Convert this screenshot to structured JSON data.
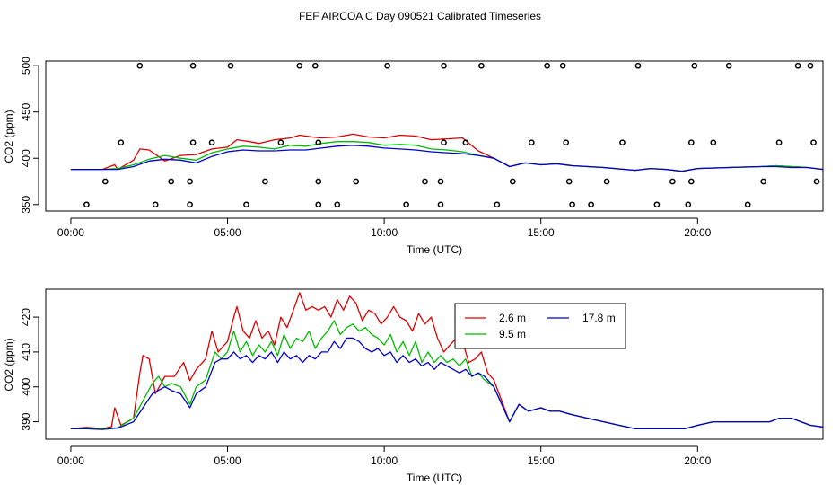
{
  "title": "FEF AIRCOA C  Day 090521  Calibrated Timeseries",
  "colors": {
    "s26": "#dd0000",
    "s95": "#00bb00",
    "s178": "#0000cc",
    "axis": "#000000"
  },
  "chart_data": [
    {
      "type": "line",
      "panel": "top",
      "xlabel": "Time (UTC)",
      "ylabel": "CO2 (ppm)",
      "xlim": [
        -0.8,
        24.0
      ],
      "ylim": [
        343,
        505
      ],
      "x_ticks": [
        0,
        5,
        10,
        15,
        20
      ],
      "x_tick_labels": [
        "00:00",
        "05:00",
        "10:00",
        "15:00",
        "20:00"
      ],
      "y_ticks": [
        350,
        400,
        450,
        500
      ],
      "y_tick_labels": [
        "350",
        "400",
        "450",
        "500"
      ],
      "series": [
        {
          "name": "2.6 m",
          "color_key": "s26",
          "x": [
            0,
            0.5,
            1,
            1.4,
            1.5,
            2,
            2.2,
            2.5,
            3,
            3.5,
            4,
            4.5,
            5,
            5.3,
            5.7,
            6,
            6.5,
            7,
            7.3,
            7.7,
            8,
            8.5,
            9,
            9.5,
            10,
            10.5,
            11,
            11.5,
            12,
            12.5,
            13,
            13.5,
            14,
            14.5,
            15,
            15.5,
            16,
            17,
            18,
            18.5,
            19,
            19.5,
            20,
            21,
            22,
            22.5,
            23,
            23.5,
            24
          ],
          "values": [
            388,
            388,
            388,
            393,
            388,
            398,
            410,
            409,
            397,
            403,
            404,
            410,
            412,
            420,
            418,
            416,
            420,
            422,
            425,
            423,
            422,
            423,
            426,
            423,
            422,
            425,
            424,
            420,
            421,
            422,
            408,
            400,
            391,
            395,
            393,
            394,
            392,
            390,
            387,
            389,
            388,
            386,
            389,
            390,
            391,
            392,
            391,
            390,
            388
          ]
        },
        {
          "name": "9.5 m",
          "color_key": "s95",
          "x": [
            0,
            0.5,
            1,
            1.5,
            2,
            2.5,
            3,
            3.5,
            4,
            4.5,
            5,
            5.5,
            6,
            6.5,
            7,
            7.5,
            8,
            8.5,
            9,
            9.5,
            10,
            10.5,
            11,
            11.5,
            12,
            12.5,
            13,
            13.5,
            14,
            14.5,
            15,
            15.5,
            16,
            17,
            18,
            18.5,
            19,
            19.5,
            20,
            21,
            22,
            22.5,
            23,
            23.5,
            24
          ],
          "values": [
            388,
            388,
            388,
            389,
            393,
            399,
            403,
            400,
            398,
            406,
            410,
            413,
            412,
            410,
            414,
            413,
            416,
            418,
            418,
            417,
            414,
            415,
            414,
            410,
            409,
            407,
            403,
            400,
            391,
            395,
            393,
            394,
            392,
            390,
            387,
            389,
            388,
            386,
            389,
            390,
            391,
            392,
            391,
            390,
            388
          ]
        },
        {
          "name": "17.8 m",
          "color_key": "s178",
          "x": [
            0,
            0.5,
            1,
            1.5,
            2,
            2.5,
            3,
            3.5,
            4,
            4.5,
            5,
            5.5,
            6,
            6.5,
            7,
            7.5,
            8,
            8.5,
            9,
            9.5,
            10,
            10.5,
            11,
            11.5,
            12,
            12.5,
            13,
            13.5,
            14,
            14.5,
            15,
            15.5,
            16,
            17,
            18,
            18.5,
            19,
            19.5,
            20,
            21,
            22,
            22.5,
            23,
            23.5,
            24
          ],
          "values": [
            388,
            388,
            388,
            388,
            391,
            397,
            399,
            398,
            395,
            402,
            407,
            409,
            408,
            408,
            409,
            409,
            411,
            413,
            414,
            413,
            411,
            410,
            409,
            407,
            406,
            405,
            403,
            400,
            391,
            395,
            393,
            394,
            392,
            390,
            387,
            389,
            388,
            386,
            389,
            390,
            391,
            391,
            390,
            390,
            388
          ]
        }
      ],
      "points": {
        "x": [
          0.5,
          1.1,
          1.6,
          2.2,
          2.7,
          3.2,
          3.8,
          3.8,
          3.9,
          3.9,
          4.5,
          5.1,
          5.6,
          6.2,
          6.7,
          7.3,
          7.8,
          7.9,
          7.9,
          7.9,
          8.5,
          9.1,
          10.1,
          10.7,
          11.3,
          11.8,
          11.8,
          11.9,
          11.9,
          12.6,
          13.1,
          13.6,
          14.1,
          14.7,
          15.2,
          15.7,
          15.8,
          15.9,
          16.0,
          16.6,
          17.1,
          17.6,
          18.1,
          18.7,
          19.2,
          19.7,
          19.8,
          19.8,
          19.9,
          20.5,
          21.0,
          21.6,
          22.1,
          22.6,
          23.2,
          23.6,
          23.7,
          23.8
        ],
        "values": [
          350,
          375,
          417,
          500,
          350,
          375,
          350,
          375,
          417,
          500,
          417,
          500,
          350,
          375,
          417,
          500,
          500,
          417,
          375,
          350,
          350,
          375,
          500,
          350,
          375,
          350,
          375,
          417,
          500,
          417,
          500,
          350,
          375,
          417,
          500,
          500,
          417,
          375,
          350,
          350,
          375,
          417,
          500,
          350,
          375,
          350,
          375,
          417,
          500,
          417,
          500,
          350,
          375,
          417,
          500,
          500,
          417,
          375
        ]
      }
    },
    {
      "type": "line",
      "panel": "bottom",
      "xlabel": "Time (UTC)",
      "ylabel": "CO2 (ppm)",
      "xlim": [
        -0.8,
        24.0
      ],
      "ylim": [
        385,
        428
      ],
      "x_ticks": [
        0,
        5,
        10,
        15,
        20
      ],
      "x_tick_labels": [
        "00:00",
        "05:00",
        "10:00",
        "15:00",
        "20:00"
      ],
      "y_ticks": [
        390,
        400,
        410,
        420
      ],
      "y_tick_labels": [
        "390",
        "400",
        "410",
        "420"
      ],
      "legend": {
        "position": "top-right",
        "entries": [
          "2.6 m",
          "9.5 m",
          "17.8 m"
        ]
      },
      "series": [
        {
          "name": "2.6 m",
          "color_key": "s26",
          "x": [
            0,
            0.5,
            1,
            1.3,
            1.4,
            1.6,
            2,
            2.2,
            2.3,
            2.5,
            2.7,
            3,
            3.3,
            3.6,
            3.8,
            4,
            4.3,
            4.5,
            4.7,
            4.9,
            5,
            5.2,
            5.3,
            5.5,
            5.7,
            5.9,
            6.1,
            6.3,
            6.5,
            6.7,
            6.9,
            7.1,
            7.3,
            7.5,
            7.7,
            7.9,
            8.1,
            8.3,
            8.5,
            8.7,
            8.9,
            9.1,
            9.3,
            9.5,
            9.7,
            9.9,
            10.1,
            10.3,
            10.5,
            10.7,
            10.9,
            11.1,
            11.3,
            11.5,
            11.7,
            11.9,
            12.1,
            12.3,
            12.5,
            12.7,
            12.9,
            13.1,
            13.3,
            13.5,
            14,
            14.3,
            14.6,
            15,
            15.3,
            15.6,
            16,
            16.5,
            17,
            17.5,
            18,
            18.3,
            18.6,
            19,
            19.3,
            19.6,
            20,
            20.5,
            21,
            21.5,
            22,
            22.3,
            22.6,
            23,
            23.3,
            23.6,
            24
          ],
          "values": [
            388,
            388.4,
            388,
            388.6,
            394,
            389,
            391,
            404,
            409,
            408,
            398,
            403,
            403,
            407,
            401.8,
            405,
            408,
            416,
            410,
            412,
            413,
            420,
            423,
            416,
            414,
            419,
            414,
            416,
            412,
            420,
            417,
            422,
            427,
            422,
            423,
            422,
            423,
            420,
            425,
            422,
            426,
            424,
            419,
            422,
            421,
            418,
            420,
            423,
            420,
            419,
            416,
            421,
            418,
            420,
            414,
            410,
            412,
            414,
            413,
            407,
            408,
            410,
            404,
            402,
            390,
            395,
            393,
            394,
            393,
            393,
            392,
            391,
            390,
            389,
            388,
            388,
            388,
            388,
            388,
            388,
            389,
            390,
            390,
            390,
            390,
            390,
            391,
            391,
            390,
            389,
            388.5
          ]
        },
        {
          "name": "9.5 m",
          "color_key": "s95",
          "x": [
            0,
            0.5,
            1,
            1.5,
            2,
            2.3,
            2.6,
            2.8,
            3,
            3.2,
            3.5,
            3.8,
            4,
            4.3,
            4.6,
            4.8,
            5,
            5.2,
            5.4,
            5.6,
            5.8,
            6,
            6.2,
            6.4,
            6.6,
            6.8,
            7,
            7.2,
            7.4,
            7.6,
            7.8,
            8,
            8.2,
            8.4,
            8.6,
            8.8,
            9,
            9.2,
            9.4,
            9.6,
            9.8,
            10,
            10.2,
            10.4,
            10.6,
            10.8,
            11,
            11.2,
            11.4,
            11.6,
            11.8,
            12,
            12.2,
            12.4,
            12.6,
            12.8,
            13,
            13.2,
            13.5,
            14,
            14.3,
            14.6,
            15,
            15.3,
            15.6,
            16,
            16.5,
            17,
            17.5,
            18,
            18.3,
            18.6,
            19,
            19.3,
            19.6,
            20,
            20.5,
            21,
            21.5,
            22,
            22.3,
            22.6,
            23,
            23.3,
            23.6,
            24
          ],
          "values": [
            388,
            388.2,
            388,
            388.3,
            391,
            396,
            401,
            403,
            400,
            401,
            400,
            395,
            400,
            402,
            410,
            408,
            410,
            416,
            410,
            413,
            409,
            412,
            410,
            413,
            409,
            415,
            411,
            414,
            413,
            416,
            411,
            414,
            416,
            419,
            415,
            417,
            418,
            416,
            417,
            415,
            414,
            412,
            415,
            410,
            413,
            409,
            413,
            407,
            410,
            407,
            409,
            407,
            408,
            406,
            408,
            403,
            404,
            402,
            400,
            390,
            395,
            393,
            394,
            393,
            393,
            392,
            391,
            390,
            389,
            388,
            388,
            388,
            388,
            388,
            388,
            389,
            390,
            390,
            390,
            390,
            390,
            391,
            391,
            390,
            389,
            388.5
          ]
        },
        {
          "name": "17.8 m",
          "color_key": "s178",
          "x": [
            0,
            0.5,
            1,
            1.5,
            2,
            2.3,
            2.6,
            2.8,
            3,
            3.2,
            3.5,
            3.8,
            4,
            4.3,
            4.6,
            4.8,
            5,
            5.2,
            5.4,
            5.6,
            5.8,
            6,
            6.2,
            6.4,
            6.6,
            6.8,
            7,
            7.2,
            7.4,
            7.6,
            7.8,
            8,
            8.2,
            8.4,
            8.6,
            8.8,
            9,
            9.2,
            9.4,
            9.6,
            9.8,
            10,
            10.2,
            10.4,
            10.6,
            10.8,
            11,
            11.2,
            11.4,
            11.6,
            11.8,
            12,
            12.2,
            12.4,
            12.6,
            12.8,
            13,
            13.2,
            13.5,
            14,
            14.3,
            14.6,
            15,
            15.3,
            15.6,
            16,
            16.5,
            17,
            17.5,
            18,
            18.3,
            18.6,
            19,
            19.3,
            19.6,
            20,
            20.5,
            21,
            21.5,
            22,
            22.3,
            22.6,
            23,
            23.3,
            23.6,
            24
          ],
          "values": [
            388,
            388,
            387.8,
            388.2,
            390,
            394,
            398,
            399,
            400,
            399,
            398,
            394,
            398,
            400,
            407,
            408,
            408,
            410,
            408,
            409,
            407,
            409,
            408,
            410,
            407,
            410,
            408,
            409,
            407,
            409,
            408,
            410,
            410,
            413,
            411,
            414,
            414,
            413,
            411,
            410,
            411,
            409,
            410,
            407,
            409,
            407,
            408,
            406,
            407,
            405,
            407,
            406,
            405,
            404,
            405,
            403,
            404,
            403,
            400,
            390,
            395,
            393,
            394,
            393,
            393,
            392,
            391,
            390,
            389,
            388,
            388,
            388,
            388,
            388,
            388,
            389,
            390,
            390,
            390,
            390,
            390,
            391,
            391,
            390,
            389,
            388.5
          ]
        }
      ]
    }
  ]
}
